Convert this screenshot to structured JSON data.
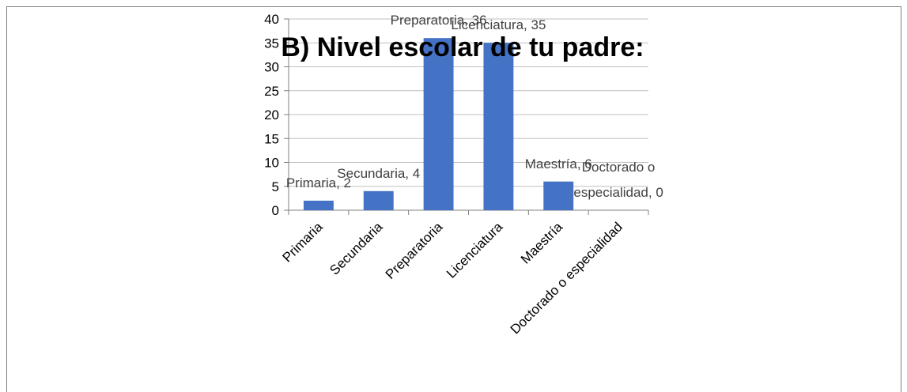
{
  "chart_data": {
    "type": "bar",
    "title": "B) Nivel escolar de tu padre:",
    "categories": [
      "Primaria",
      "Secundaria",
      "Preparatoria",
      "Licenciatura",
      "Maestría",
      "Doctorado o especialidad"
    ],
    "values": [
      2,
      4,
      36,
      35,
      6,
      0
    ],
    "value_labels": [
      "Primaria, 2",
      "Secundaria, 4",
      "Preparatoria, 36",
      "Licenciatura, 35",
      "Maestría, 6",
      "Doctorado o especialidad, 0"
    ],
    "color": "#4472c4",
    "ylim": [
      0,
      40
    ],
    "yticks": [
      0,
      5,
      10,
      15,
      20,
      25,
      30,
      35,
      40
    ],
    "grid": true
  }
}
